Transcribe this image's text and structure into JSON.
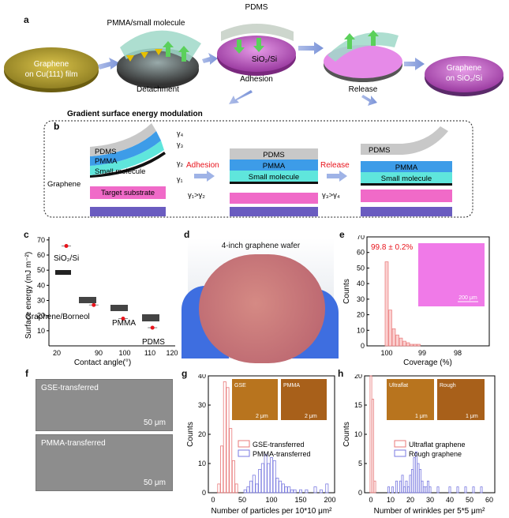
{
  "panel_letters": {
    "a": "a",
    "b": "b",
    "c": "c",
    "d": "d",
    "e": "e",
    "f": "f",
    "g": "g",
    "h": "h"
  },
  "panel_a": {
    "graphene_cu": [
      "Graphene",
      "on Cu(111) film"
    ],
    "pmma_small": "PMMA/small molecule",
    "detachment": "Detachment",
    "pdms": "PDMS",
    "sio2": "SiO₂/Si",
    "adhesion": "Adhesion",
    "release": "Release",
    "graphene_sio2": [
      "Graphene",
      "on SiO₂/Si"
    ],
    "gradient_title": "Gradient surface energy modulation"
  },
  "panel_b": {
    "stack1": {
      "pdms": "PDMS",
      "pmma": "PMMA",
      "small": "Small molecule",
      "substrate": "Target substrate",
      "graphene": "Graphene"
    },
    "gammas": [
      "γ₄",
      "γ₃",
      "γ₂",
      "γ₁"
    ],
    "adhesion_label": "Adhesion",
    "cond1": "γ₁>γ₂",
    "stack2": {
      "pdms": "PDMS",
      "pmma": "PMMA",
      "small": "Small molecule"
    },
    "release_label": "Release",
    "cond2": "γ₃>γ₄",
    "stack3": {
      "pdms": "PDMS",
      "pmma": "PMMA",
      "small": "Small molecule"
    },
    "colors": {
      "red": "#e8141c",
      "pdms": "#bfbfbf",
      "pmma": "#3d9ce8",
      "small": "#5fe6dc",
      "substrate": "#f06ac8",
      "base": "#6a5cc0"
    }
  },
  "panel_c": {
    "chart_data": {
      "type": "scatter",
      "xlabel": "Contact angle(°)",
      "ylabel": "Surface energy (mJ m⁻²)",
      "xticks": [
        "20",
        "90",
        "100",
        "110",
        "120"
      ],
      "yticks": [
        "10",
        "20",
        "30",
        "40",
        "50",
        "60",
        "70"
      ],
      "points": [
        {
          "label": "SiO₂/Si",
          "x": 30,
          "y": 66
        },
        {
          "label": "Graphene/Borneol",
          "x": 88,
          "y": 27
        },
        {
          "label": "PMMA",
          "x": 100,
          "y": 18
        },
        {
          "label": "PDMS",
          "x": 112,
          "y": 12
        }
      ]
    }
  },
  "panel_d": {
    "caption": "4-inch graphene wafer"
  },
  "panel_e": {
    "chart_data": {
      "type": "bar",
      "xlabel": "Coverage (%)",
      "ylabel": "Counts",
      "xticks": [
        "100",
        "99",
        "98"
      ],
      "yticks": [
        "0",
        "10",
        "20",
        "30",
        "40",
        "50",
        "60",
        "70"
      ],
      "annotation": "99.8 ± 0.2%",
      "scalebar": "200 μm",
      "bins": [
        {
          "x": 100.0,
          "count": 54
        },
        {
          "x": 99.9,
          "count": 23
        },
        {
          "x": 99.8,
          "count": 11
        },
        {
          "x": 99.7,
          "count": 7
        },
        {
          "x": 99.6,
          "count": 5
        },
        {
          "x": 99.5,
          "count": 3
        },
        {
          "x": 99.4,
          "count": 2
        },
        {
          "x": 99.3,
          "count": 1
        },
        {
          "x": 99.2,
          "count": 1
        },
        {
          "x": 99.1,
          "count": 1
        }
      ]
    }
  },
  "panel_f": {
    "top": "GSE-transferred",
    "bottom": "PMMA-transferred",
    "scalebar": "50 μm"
  },
  "panel_g": {
    "chart_data": {
      "type": "bar",
      "xlabel": "Number of particles per 10*10 μm²",
      "ylabel": "Counts",
      "xticks": [
        "0",
        "50",
        "100",
        "150",
        "200"
      ],
      "yticks": [
        "0",
        "10",
        "20",
        "30",
        "40"
      ],
      "insets": [
        "GSE",
        "PMMA"
      ],
      "inset_scale": "2 μm",
      "series": [
        {
          "name": "GSE-transferred",
          "color": "#e87878",
          "x": [
            10,
            15,
            20,
            25,
            30,
            35,
            40
          ],
          "values": [
            3,
            16,
            38,
            36,
            22,
            11,
            3
          ]
        },
        {
          "name": "PMMA-transferred",
          "color": "#7a7ae0",
          "x": [
            55,
            60,
            65,
            70,
            75,
            80,
            85,
            90,
            95,
            100,
            105,
            110,
            115,
            120,
            125,
            130,
            135,
            140,
            150,
            160,
            175,
            185,
            195
          ],
          "values": [
            1,
            2,
            4,
            6,
            3,
            8,
            10,
            13,
            10,
            12,
            11,
            5,
            4,
            3,
            2,
            2,
            1,
            1,
            1,
            1,
            2,
            1,
            3
          ]
        }
      ]
    }
  },
  "panel_h": {
    "chart_data": {
      "type": "bar",
      "xlabel": "Number of wrinkles per 5*5 μm²",
      "ylabel": "Counts",
      "xticks": [
        "0",
        "10",
        "20",
        "30",
        "40",
        "50",
        "60"
      ],
      "yticks": [
        "0",
        "5",
        "10",
        "15",
        "20"
      ],
      "insets": [
        "Ultraflat",
        "Rough"
      ],
      "inset_scale": "1 μm",
      "series": [
        {
          "name": "Ultraflat graphene",
          "color": "#e87878",
          "x": [
            0,
            1,
            2
          ],
          "values": [
            20,
            16,
            2
          ]
        },
        {
          "name": "Rough graphene",
          "color": "#7a7ae0",
          "x": [
            9,
            11,
            13,
            15,
            16,
            17,
            18,
            19,
            20,
            21,
            22,
            23,
            24,
            25,
            26,
            27,
            28,
            29,
            30,
            34,
            40,
            44,
            48,
            52,
            56
          ],
          "values": [
            1,
            1,
            2,
            2,
            3,
            1,
            2,
            1,
            3,
            4,
            6,
            7,
            5,
            4,
            2,
            1,
            1,
            2,
            1,
            1,
            1,
            1,
            1,
            1,
            1
          ]
        }
      ]
    }
  }
}
